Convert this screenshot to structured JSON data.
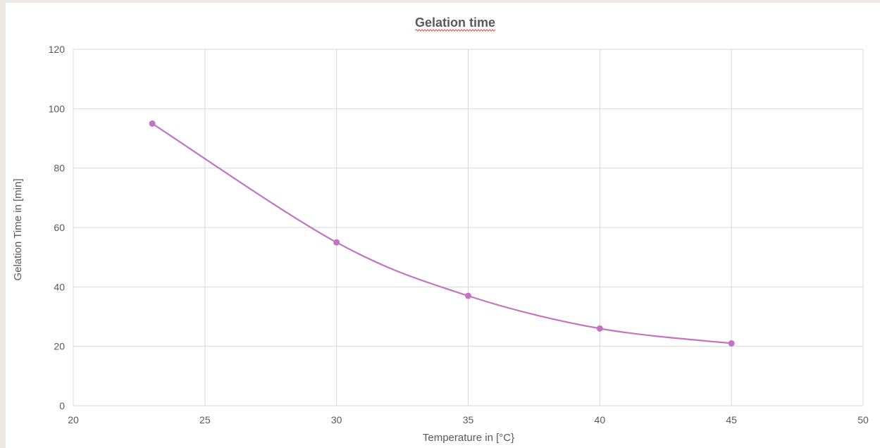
{
  "chart_data": {
    "type": "scatter",
    "title": "Gelation time",
    "xlabel": "Temperature in [°C}",
    "ylabel": "Gelation Time in [min]",
    "xlim": [
      20,
      50
    ],
    "ylim": [
      0,
      120
    ],
    "xticks": [
      20,
      25,
      30,
      35,
      40,
      45,
      50
    ],
    "yticks": [
      0,
      20,
      40,
      60,
      80,
      100,
      120
    ],
    "grid": true,
    "smooth_line": true,
    "series": [
      {
        "x": [
          23,
          30,
          35,
          40,
          45
        ],
        "y": [
          95,
          55,
          37,
          26,
          21
        ],
        "color": "#c374c1"
      }
    ],
    "colors": {
      "grid": "#d9d9d9",
      "text": "#595959",
      "title_underline": "#e05050"
    }
  }
}
